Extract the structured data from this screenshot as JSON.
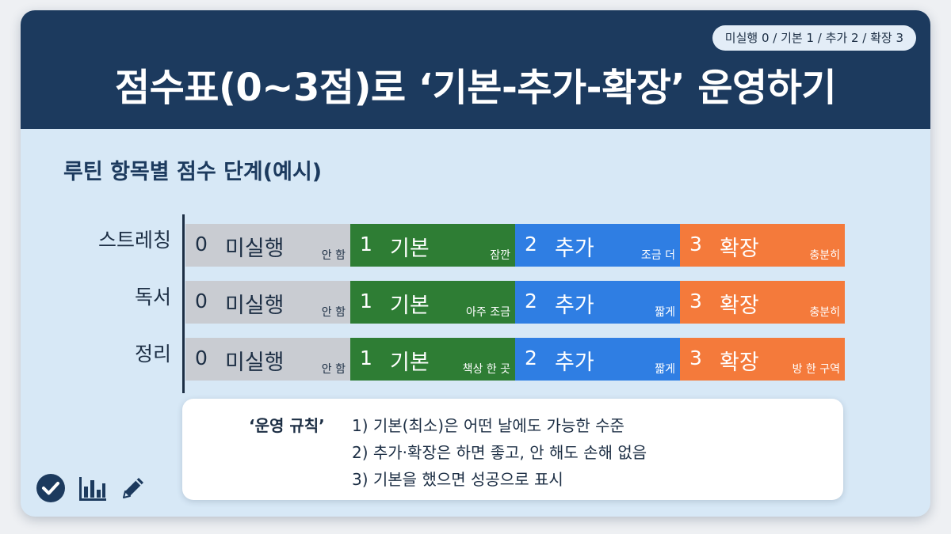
{
  "header": {
    "legend": "미실행 0 / 기본 1 / 추가 2 / 확장 3",
    "title": "점수표(0~3점)로 ‘기본-추가-확장’ 운영하기"
  },
  "subtitle": "루틴 항목별 점수 단계(예시)",
  "rows": [
    {
      "label": "스트레칭",
      "levels": [
        {
          "num": "0",
          "name": "미실행",
          "hint": "안 함"
        },
        {
          "num": "1",
          "name": "기본",
          "hint": "잠깐"
        },
        {
          "num": "2",
          "name": "추가",
          "hint": "조금 더"
        },
        {
          "num": "3",
          "name": "확장",
          "hint": "충분히"
        }
      ]
    },
    {
      "label": "독서",
      "levels": [
        {
          "num": "0",
          "name": "미실행",
          "hint": "안 함"
        },
        {
          "num": "1",
          "name": "기본",
          "hint": "아주 조금"
        },
        {
          "num": "2",
          "name": "추가",
          "hint": "짧게"
        },
        {
          "num": "3",
          "name": "확장",
          "hint": "충분히"
        }
      ]
    },
    {
      "label": "정리",
      "levels": [
        {
          "num": "0",
          "name": "미실행",
          "hint": "안 함"
        },
        {
          "num": "1",
          "name": "기본",
          "hint": "책상 한 곳"
        },
        {
          "num": "2",
          "name": "추가",
          "hint": "짧게"
        },
        {
          "num": "3",
          "name": "확장",
          "hint": "방 한 구역"
        }
      ]
    }
  ],
  "rules": {
    "heading": "‘운영 규칙’",
    "items": [
      "1) 기본(최소)은 어떤 날에도 가능한 수준",
      "2) 추가·확장은 하면 좋고, 안 해도 손해 없음",
      "3) 기본을 했으면 성공으로 표시"
    ]
  },
  "colors": {
    "header_bg": "#1c3a5e",
    "body_bg": "#d7e8f6",
    "level_0": "#c9ccd2",
    "level_1": "#2e7d34",
    "level_2": "#2f7ee3",
    "level_3": "#f47a3b"
  },
  "icons": [
    "check-circle-icon",
    "bar-chart-icon",
    "pencil-icon"
  ]
}
